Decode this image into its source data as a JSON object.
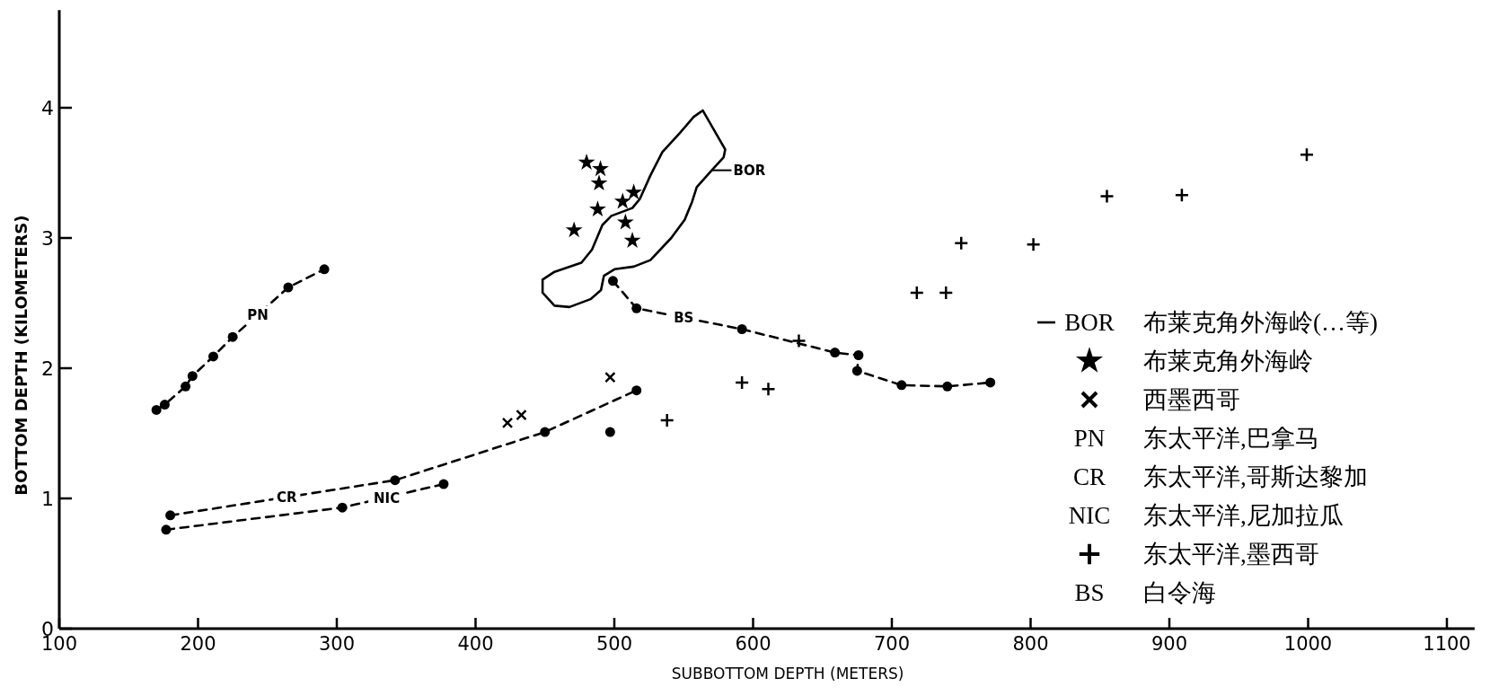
{
  "chart_data": {
    "type": "scatter",
    "xlabel": "SUBBOTTOM DEPTH (METERS)",
    "ylabel": "BOTTOM DEPTH (KILOMETERS)",
    "xlim": [
      100,
      1120
    ],
    "ylim": [
      0,
      4.75
    ],
    "xticks": [
      100,
      200,
      300,
      400,
      500,
      600,
      700,
      800,
      900,
      1000,
      1100
    ],
    "yticks": [
      0,
      1,
      2,
      3,
      4
    ],
    "grid": false,
    "legend": "bottom right",
    "series": [
      {
        "name": "BOR 布莱克角外海岭(…等)",
        "type": "line",
        "marker": "none",
        "line_style": "solid",
        "color": "#000000",
        "x": [
          563.7,
          579.9,
          578.8,
          570.2,
          559.4,
          556.1,
          550.7,
          541.0,
          526.0,
          514.0,
          500.1,
          492.5,
          490.4,
          482.8,
          467.7,
          456.9,
          448.3,
          448.3,
          456.9,
          476.3,
          483.9,
          491.4,
          497.9,
          513.0,
          518.4,
          526.0,
          534.6,
          547.5,
          557.2,
          562.5
        ],
        "values": [
          3.98,
          3.68,
          3.62,
          3.52,
          3.39,
          3.28,
          3.14,
          3.0,
          2.83,
          2.78,
          2.76,
          2.71,
          2.6,
          2.53,
          2.47,
          2.48,
          2.58,
          2.68,
          2.74,
          2.81,
          2.91,
          3.1,
          3.17,
          3.23,
          3.3,
          3.48,
          3.66,
          3.81,
          3.93,
          3.97
        ]
      },
      {
        "name": "布莱克角外海岭",
        "marker": "star",
        "color": "#000000",
        "x": [
          480,
          490,
          489,
          514,
          506,
          488,
          508,
          471,
          513
        ],
        "values": [
          3.58,
          3.53,
          3.42,
          3.35,
          3.28,
          3.22,
          3.12,
          3.06,
          2.98
        ]
      },
      {
        "name": "西墨西哥",
        "marker": "x",
        "color": "#000000",
        "x": [
          423,
          433,
          497
        ],
        "values": [
          1.58,
          1.64,
          1.93
        ]
      },
      {
        "name": "PN 东太平洋,巴拿马",
        "type": "line",
        "marker": "circle",
        "line_style": "dashed",
        "color": "#000000",
        "x": [
          170,
          176,
          191,
          196,
          211,
          225,
          265,
          291
        ],
        "values": [
          1.68,
          1.72,
          1.86,
          1.94,
          2.09,
          2.24,
          2.62,
          2.76
        ]
      },
      {
        "name": "CR 东太平洋,哥斯达黎加",
        "type": "line",
        "marker": "circle",
        "line_style": "dashed",
        "color": "#000000",
        "x": [
          180,
          342,
          450,
          516
        ],
        "values": [
          0.87,
          1.14,
          1.51,
          1.83
        ]
      },
      {
        "name": "NIC 东太平洋,尼加拉瓜",
        "type": "line",
        "marker": "circle",
        "line_style": "dashed",
        "color": "#000000",
        "x": [
          177,
          304,
          377,
          440,
          497
        ],
        "values": [
          0.76,
          0.93,
          1.11,
          null,
          1.51
        ]
      },
      {
        "name": "东太平洋,墨西哥",
        "marker": "cross",
        "color": "#000000",
        "x": [
          538,
          592,
          611,
          633,
          718,
          739,
          750,
          802,
          855,
          909,
          999
        ],
        "values": [
          1.6,
          1.89,
          1.84,
          2.21,
          2.58,
          2.58,
          2.96,
          2.95,
          3.32,
          3.33,
          3.64
        ]
      },
      {
        "name": "BS 白令海",
        "type": "line",
        "marker": "circle",
        "line_style": "dashed",
        "color": "#000000",
        "x": [
          499,
          516,
          592,
          659,
          676,
          675,
          707,
          740,
          771
        ],
        "values": [
          2.67,
          2.46,
          2.3,
          2.12,
          2.1,
          1.98,
          1.87,
          1.86,
          1.89
        ]
      }
    ],
    "annotations": [
      {
        "text": "BOR",
        "x": 570.2,
        "y": 3.52
      },
      {
        "text": "PN",
        "x": 243,
        "y": 2.41
      },
      {
        "text": "CR",
        "x": 264,
        "y": 1.01
      },
      {
        "text": "NIC",
        "x": 336,
        "y": 1.0
      },
      {
        "text": "BS",
        "x": 550,
        "y": 2.39
      }
    ]
  }
}
